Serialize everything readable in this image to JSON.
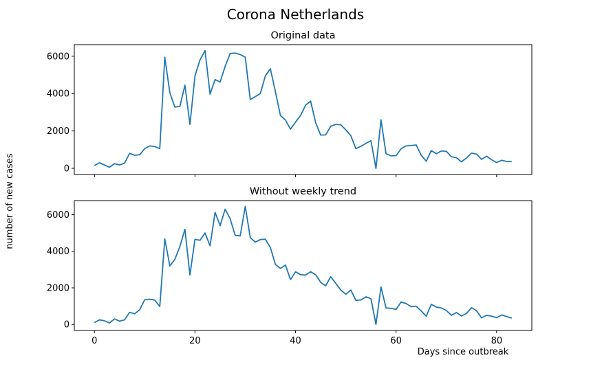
{
  "figure": {
    "suptitle": "Corona Netherlands",
    "shared_ylabel": "number of new cases",
    "shared_xlabel": "Days since outbreak",
    "line_color": "#1f77b4"
  },
  "chart_data": [
    {
      "type": "line",
      "title": "Original data",
      "xlabel": "",
      "ylabel": "number of new cases",
      "xlim": [
        -4,
        87
      ],
      "ylim": [
        -330,
        6620
      ],
      "xticks": [
        0,
        20,
        40,
        60,
        80
      ],
      "yticks": [
        0,
        2000,
        4000,
        6000
      ],
      "xtick_labels_visible": false,
      "grid": false,
      "series": [
        {
          "x": [
            0,
            1,
            2,
            3,
            4,
            5,
            6,
            7,
            8,
            9,
            10,
            11,
            12,
            13,
            14,
            15,
            16,
            17,
            18,
            19,
            20,
            21,
            22,
            23,
            24,
            25,
            26,
            27,
            28,
            29,
            30,
            31,
            32,
            33,
            34,
            35,
            36,
            37,
            38,
            39,
            40,
            41,
            42,
            43,
            44,
            45,
            46,
            47,
            48,
            49,
            50,
            51,
            52,
            53,
            54,
            55,
            56,
            57,
            58,
            59,
            60,
            61,
            62,
            63,
            64,
            65,
            66,
            67,
            68,
            69,
            70,
            71,
            72,
            73,
            74,
            75,
            76,
            77,
            78,
            79,
            80,
            81,
            82,
            83
          ],
          "y": [
            150,
            300,
            180,
            60,
            250,
            180,
            280,
            800,
            700,
            730,
            1050,
            1200,
            1170,
            1050,
            5950,
            4050,
            3280,
            3320,
            4450,
            2350,
            4950,
            5800,
            6300,
            3970,
            4750,
            4620,
            5460,
            6150,
            6170,
            6090,
            5950,
            3680,
            3840,
            4000,
            4950,
            5330,
            4100,
            2830,
            2580,
            2100,
            2470,
            2830,
            3380,
            3600,
            2450,
            1780,
            1790,
            2250,
            2350,
            2330,
            2060,
            1750,
            1050,
            1180,
            1340,
            1480,
            0,
            2600,
            780,
            670,
            680,
            1050,
            1200,
            1220,
            1250,
            700,
            380,
            950,
            780,
            930,
            910,
            620,
            570,
            350,
            550,
            820,
            760,
            480,
            650,
            460,
            310,
            430,
            370,
            360
          ]
        }
      ]
    },
    {
      "type": "line",
      "title": "Without weekly trend",
      "xlabel": "Days since outbreak",
      "ylabel": "number of new cases",
      "xlim": [
        -4,
        87
      ],
      "ylim": [
        -330,
        6770
      ],
      "xticks": [
        0,
        20,
        40,
        60,
        80
      ],
      "yticks": [
        0,
        2000,
        4000,
        6000
      ],
      "xtick_labels_visible": true,
      "grid": false,
      "series": [
        {
          "x": [
            0,
            1,
            2,
            3,
            4,
            5,
            6,
            7,
            8,
            9,
            10,
            11,
            12,
            13,
            14,
            15,
            16,
            17,
            18,
            19,
            20,
            21,
            22,
            23,
            24,
            25,
            26,
            27,
            28,
            29,
            30,
            31,
            32,
            33,
            34,
            35,
            36,
            37,
            38,
            39,
            40,
            41,
            42,
            43,
            44,
            45,
            46,
            47,
            48,
            49,
            50,
            51,
            52,
            53,
            54,
            55,
            56,
            57,
            58,
            59,
            60,
            61,
            62,
            63,
            64,
            65,
            66,
            67,
            68,
            69,
            70,
            71,
            72,
            73,
            74,
            75,
            76,
            77,
            78,
            79,
            80,
            81,
            82,
            83
          ],
          "y": [
            100,
            250,
            200,
            80,
            300,
            180,
            250,
            660,
            580,
            800,
            1350,
            1380,
            1330,
            980,
            4680,
            3200,
            3560,
            4260,
            5200,
            2700,
            4650,
            4600,
            5000,
            4300,
            6130,
            5400,
            6300,
            5780,
            4870,
            4840,
            6450,
            4750,
            4500,
            4640,
            4660,
            4200,
            3280,
            3060,
            3250,
            2450,
            2880,
            2720,
            2700,
            2880,
            2720,
            2300,
            2110,
            2610,
            2250,
            1880,
            1650,
            1880,
            1320,
            1340,
            1510,
            1410,
            0,
            2050,
            900,
            880,
            820,
            1230,
            1140,
            970,
            1000,
            740,
            450,
            1100,
            950,
            900,
            760,
            500,
            650,
            460,
            600,
            920,
            750,
            360,
            500,
            450,
            370,
            520,
            430,
            340
          ]
        }
      ]
    }
  ]
}
